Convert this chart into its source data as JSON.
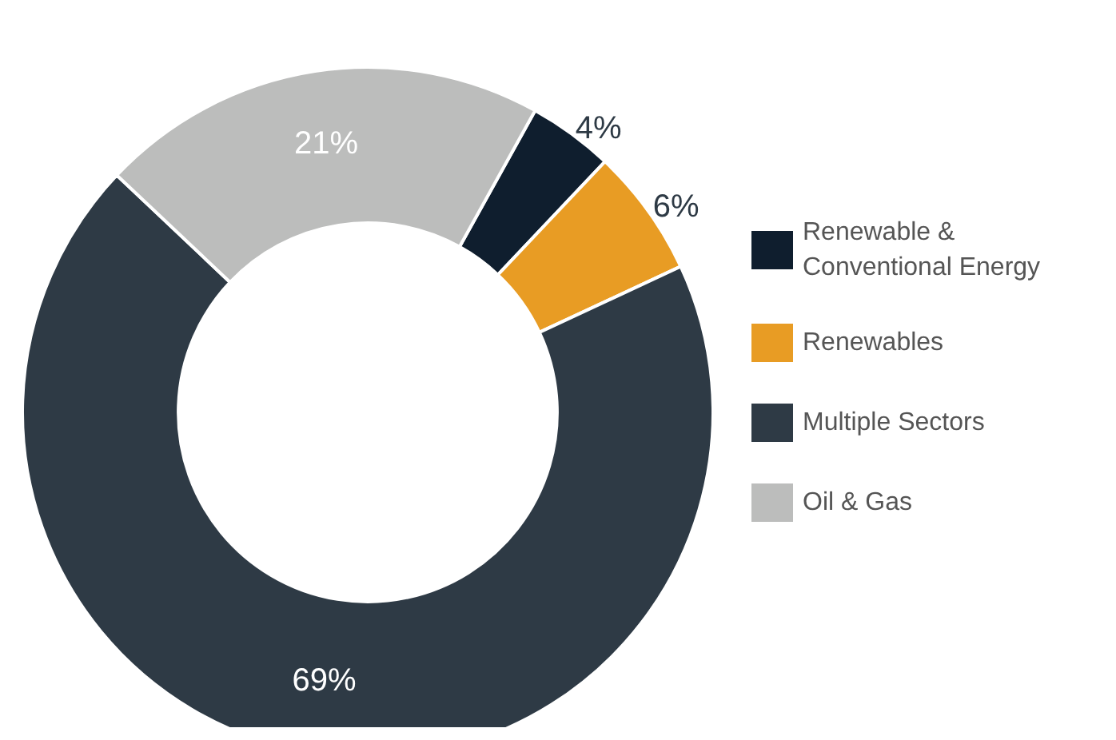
{
  "chart_data": {
    "type": "donut",
    "categories": [
      "Renewable & Conventional Energy",
      "Renewables",
      "Multiple Sectors",
      "Oil & Gas"
    ],
    "values": [
      4,
      6,
      69,
      21
    ],
    "colors": [
      "#0f1e2e",
      "#e89c24",
      "#2e3a45",
      "#bcbdbc"
    ],
    "value_labels": [
      "4%",
      "6%",
      "69%",
      "21%"
    ],
    "legend": "right"
  }
}
